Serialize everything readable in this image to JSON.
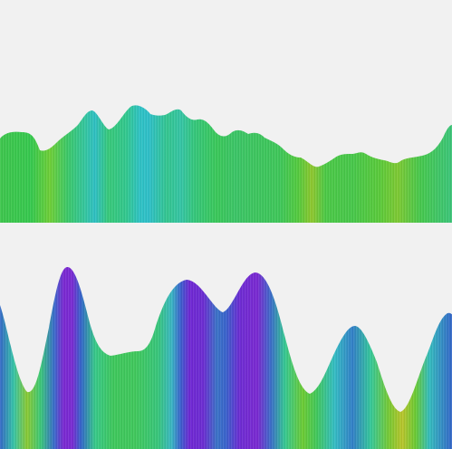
{
  "background": "#f1f1f1",
  "palette": {
    "low": "#a8c92e",
    "mid": "#35c95f",
    "teal": "#2ebfc1",
    "blue": "#3b6fc8",
    "violet": "#7a2bd2"
  },
  "panels": [
    {
      "name": "top-ridge-panel"
    },
    {
      "name": "bottom-wave-panel"
    }
  ]
}
